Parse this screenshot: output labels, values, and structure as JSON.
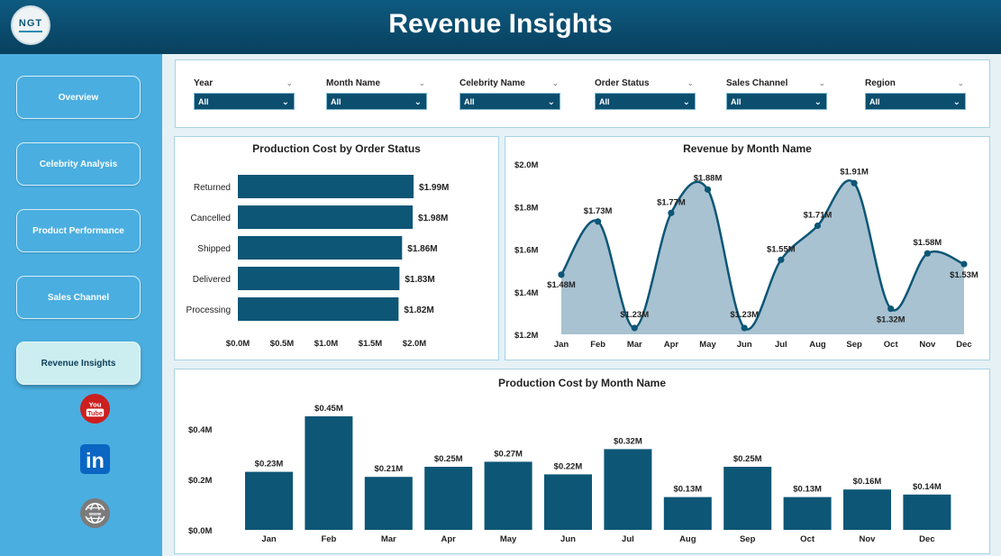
{
  "header": {
    "title": "Revenue Insights",
    "logo_text": "NGT"
  },
  "colors": {
    "header": "#0b4a6b",
    "sidebar": "#4aaee0",
    "bar": "#0d5676",
    "area": "#a3bfcf",
    "line": "#0d5676"
  },
  "sidebar": {
    "items": [
      {
        "label": "Overview",
        "active": false
      },
      {
        "label": "Celebrity Analysis",
        "active": false
      },
      {
        "label": "Product Performance",
        "active": false
      },
      {
        "label": "Sales Channel",
        "active": false
      },
      {
        "label": "Revenue Insights",
        "active": true
      }
    ],
    "social": [
      "youtube-icon",
      "linkedin-icon",
      "website-icon"
    ],
    "youtube_text": {
      "top": "You",
      "bottom": "Tube"
    },
    "linkedin_text": "in"
  },
  "filters": [
    {
      "label": "Year",
      "value": "All"
    },
    {
      "label": "Month Name",
      "value": "All"
    },
    {
      "label": "Celebrity Name",
      "value": "All"
    },
    {
      "label": "Order Status",
      "value": "All"
    },
    {
      "label": "Sales Channel",
      "value": "All"
    },
    {
      "label": "Region",
      "value": "All"
    }
  ],
  "chart_data": [
    {
      "type": "bar",
      "orientation": "horizontal",
      "title": "Production Cost by Order Status",
      "categories": [
        "Returned",
        "Cancelled",
        "Shipped",
        "Delivered",
        "Processing"
      ],
      "values": [
        1.99,
        1.98,
        1.86,
        1.83,
        1.82
      ],
      "data_labels": [
        "$1.99M",
        "$1.98M",
        "$1.86M",
        "$1.83M",
        "$1.82M"
      ],
      "xlim": [
        0,
        2.0
      ],
      "xticks": [
        "$0.0M",
        "$0.5M",
        "$1.0M",
        "$1.5M",
        "$2.0M"
      ]
    },
    {
      "type": "area",
      "title": "Revenue by Month Name",
      "categories": [
        "Jan",
        "Feb",
        "Mar",
        "Apr",
        "May",
        "Jun",
        "Jul",
        "Aug",
        "Sep",
        "Oct",
        "Nov",
        "Dec"
      ],
      "values": [
        1.48,
        1.73,
        1.23,
        1.77,
        1.88,
        1.23,
        1.55,
        1.71,
        1.91,
        1.32,
        1.58,
        1.53
      ],
      "data_labels": [
        "$1.48M",
        "$1.73M",
        "$1.23M",
        "$1.77M",
        "$1.88M",
        "$1.23M",
        "$1.55M",
        "$1.71M",
        "$1.91M",
        "$1.32M",
        "$1.58M",
        "$1.53M"
      ],
      "ylim": [
        1.2,
        2.0
      ],
      "yticks": [
        "$1.2M",
        "$1.4M",
        "$1.6M",
        "$1.8M",
        "$2.0M"
      ],
      "ytick_values": [
        1.2,
        1.4,
        1.6,
        1.8,
        2.0
      ]
    },
    {
      "type": "bar",
      "title": "Production Cost by Month Name",
      "categories": [
        "Jan",
        "Feb",
        "Mar",
        "Apr",
        "May",
        "Jun",
        "Jul",
        "Aug",
        "Sep",
        "Oct",
        "Nov",
        "Dec"
      ],
      "values": [
        0.23,
        0.45,
        0.21,
        0.25,
        0.27,
        0.22,
        0.32,
        0.13,
        0.25,
        0.13,
        0.16,
        0.14
      ],
      "data_labels": [
        "$0.23M",
        "$0.45M",
        "$0.21M",
        "$0.25M",
        "$0.27M",
        "$0.22M",
        "$0.32M",
        "$0.13M",
        "$0.25M",
        "$0.13M",
        "$0.16M",
        "$0.14M"
      ],
      "ylim": [
        0,
        0.45
      ],
      "yticks": [
        "$0.0M",
        "$0.2M",
        "$0.4M"
      ],
      "ytick_values": [
        0,
        0.2,
        0.4
      ]
    }
  ]
}
